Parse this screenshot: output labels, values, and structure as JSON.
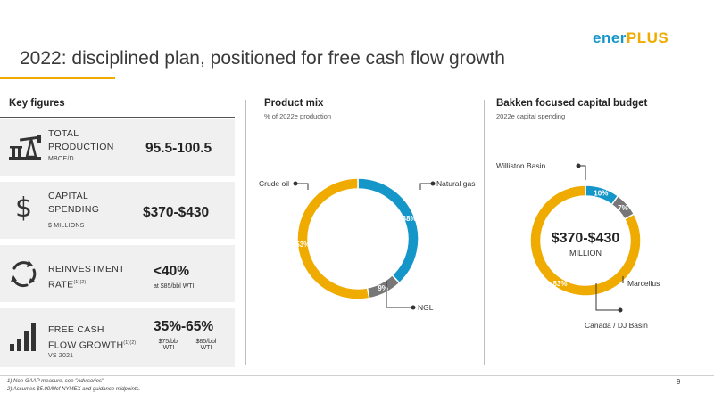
{
  "header": {
    "title": "2022: disciplined plan, positioned for free cash flow growth",
    "logo_part1": "ener",
    "logo_part2": "PLUS"
  },
  "colors": {
    "yellow": "#f0ab00",
    "blue": "#1596c9",
    "gray": "#777777",
    "panel": "#f0f0f0"
  },
  "key_figures": {
    "heading": "Key figures",
    "rows": [
      {
        "icon": "oil-pump-icon",
        "label_line1": "TOTAL",
        "label_line2": "PRODUCTION",
        "unit": "MBOE/D",
        "value": "95.5-100.5"
      },
      {
        "icon": "dollar-sign-icon",
        "label_line1": "CAPITAL",
        "label_line2": "SPENDING",
        "unit": "$ MILLIONS",
        "value": "$370-$430"
      },
      {
        "icon": "cycle-arrows-icon",
        "label_line1": "REINVESTMENT",
        "label_line2": "RATE",
        "label_sup": "(1)(2)",
        "value": "<40%",
        "note": "at $85/bbl WTI"
      },
      {
        "icon": "bar-growth-icon",
        "label_line1": "FREE CASH",
        "label_line2": "FLOW GROWTH",
        "label_sup": "(1)(2)",
        "unit": "VS 2021",
        "value": "35%-65%",
        "note_left": "$75/bbl",
        "note_left2": "WTI",
        "note_right": "$85/bbl",
        "note_right2": "WTI"
      }
    ]
  },
  "product_mix": {
    "heading": "Product mix",
    "subheading": "% of 2022e production",
    "callouts": {
      "crude": "Crude oil",
      "gas": "Natural gas",
      "ngl": "NGL"
    }
  },
  "capital_budget": {
    "heading": "Bakken focused capital budget",
    "subheading": "2022e capital spending",
    "center_value": "$370-$430",
    "center_unit": "MILLION",
    "callouts": {
      "williston": "Williston Basin",
      "marcellus": "Marcellus",
      "canada": "Canada / DJ Basin"
    }
  },
  "chart_data": [
    {
      "type": "pie",
      "title": "Product mix",
      "subtitle": "% of 2022e production",
      "categories": [
        "Natural gas",
        "NGL",
        "Crude oil"
      ],
      "values": [
        38,
        9,
        53
      ],
      "labels": [
        "38%",
        "9%",
        "53%"
      ],
      "colors": [
        "#1596c9",
        "#777777",
        "#f0ab00"
      ]
    },
    {
      "type": "pie",
      "title": "Bakken focused capital budget",
      "subtitle": "2022e capital spending",
      "categories": [
        "Marcellus",
        "Canada / DJ Basin",
        "Williston Basin"
      ],
      "values": [
        10,
        7,
        83
      ],
      "labels": [
        "10%",
        "7%",
        "83%"
      ],
      "colors": [
        "#1596c9",
        "#777777",
        "#f0ab00"
      ]
    }
  ],
  "footnotes": {
    "f1": "1)  Non-GAAP measure, see \"Advisories\".",
    "f2": "2)  Assumes $5.00/Mcf NYMEX and guidance midpoints."
  },
  "page_number": "9"
}
